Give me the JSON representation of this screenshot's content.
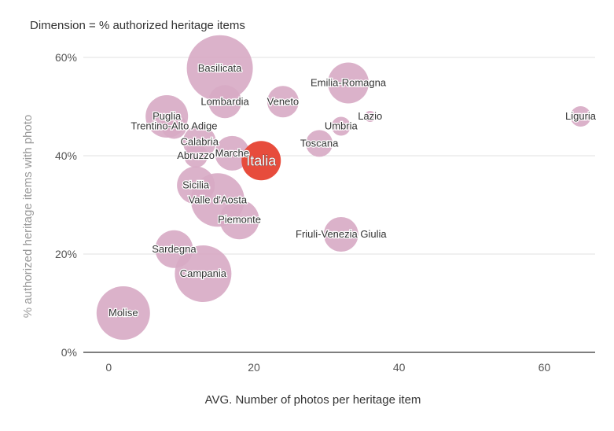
{
  "chart_data": {
    "type": "scatter",
    "subtitle": "Dimension = % authorized heritage items",
    "xlabel": "AVG. Number of photos per heritage item",
    "ylabel": "% authorized heritage items with  photo",
    "xlim": [
      -3.5,
      67
    ],
    "ylim": [
      0,
      60
    ],
    "x_ticks": [
      0,
      20,
      40,
      60
    ],
    "x_tick_labels": [
      "0",
      "20",
      "40",
      "60"
    ],
    "y_ticks": [
      0,
      20,
      40,
      60
    ],
    "y_tick_labels": [
      "0%",
      "20%",
      "40%",
      "60%"
    ],
    "grid": "horizontal",
    "colors": {
      "bubble": "#d7aac4",
      "highlight": "#e74c3c",
      "grid": "#e0e0e0",
      "axis": "#333333",
      "text": "#333333",
      "tick_text": "#555555"
    },
    "points": [
      {
        "label": "Basilicata",
        "x": 15.3,
        "y": 57.8,
        "size": 42,
        "highlight": false
      },
      {
        "label": "Emilia-Romagna",
        "x": 33.0,
        "y": 54.8,
        "size": 26,
        "highlight": false
      },
      {
        "label": "Lombardia",
        "x": 16.0,
        "y": 51.0,
        "size": 21,
        "highlight": false
      },
      {
        "label": "Veneto",
        "x": 24.0,
        "y": 51.0,
        "size": 20,
        "highlight": false
      },
      {
        "label": "Puglia",
        "x": 8.0,
        "y": 48.0,
        "size": 27,
        "highlight": false
      },
      {
        "label": "Lazio",
        "x": 36.0,
        "y": 48.0,
        "size": 7,
        "highlight": false
      },
      {
        "label": "Liguria",
        "x": 65.0,
        "y": 48.0,
        "size": 13,
        "highlight": false
      },
      {
        "label": "Trentino-Alto Adige",
        "x": 9.0,
        "y": 46.0,
        "size": 16,
        "highlight": false
      },
      {
        "label": "Umbria",
        "x": 32.0,
        "y": 46.0,
        "size": 12,
        "highlight": false
      },
      {
        "label": "Calabria",
        "x": 12.5,
        "y": 42.8,
        "size": 21,
        "highlight": false
      },
      {
        "label": "Toscana",
        "x": 29.0,
        "y": 42.5,
        "size": 17,
        "highlight": false
      },
      {
        "label": "Marche",
        "x": 17.0,
        "y": 40.5,
        "size": 22,
        "highlight": false
      },
      {
        "label": "Abruzzo",
        "x": 12.0,
        "y": 40.0,
        "size": 15,
        "highlight": false
      },
      {
        "label": "Italia",
        "x": 21.0,
        "y": 39.0,
        "size": 25,
        "highlight": true
      },
      {
        "label": "Sicilia",
        "x": 12.0,
        "y": 34.0,
        "size": 24,
        "highlight": false
      },
      {
        "label": "Valle d'Aosta",
        "x": 15.0,
        "y": 31.0,
        "size": 34,
        "highlight": false
      },
      {
        "label": "Piemonte",
        "x": 18.0,
        "y": 27.0,
        "size": 25,
        "highlight": false
      },
      {
        "label": "Friuli-Venezia Giulia",
        "x": 32.0,
        "y": 24.0,
        "size": 22,
        "highlight": false
      },
      {
        "label": "Sardegna",
        "x": 9.0,
        "y": 21.0,
        "size": 24,
        "highlight": false
      },
      {
        "label": "Campania",
        "x": 13.0,
        "y": 16.0,
        "size": 36,
        "highlight": false
      },
      {
        "label": "Molise",
        "x": 2.0,
        "y": 8.0,
        "size": 34,
        "highlight": false
      }
    ]
  }
}
